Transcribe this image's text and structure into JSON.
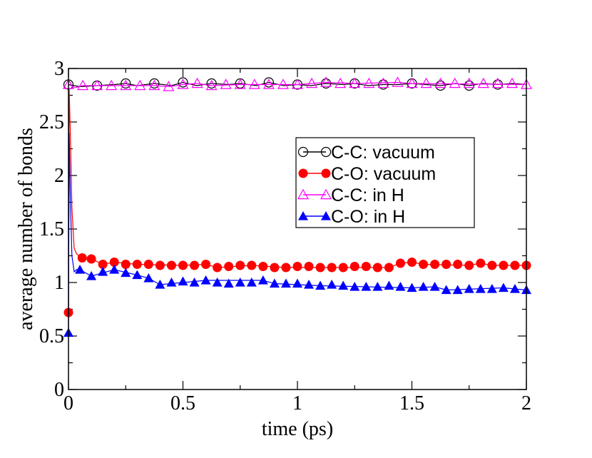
{
  "chart_data": {
    "type": "line",
    "xlabel": "time (ps)",
    "ylabel": "average number of bonds",
    "xlim": [
      0,
      2
    ],
    "ylim": [
      0,
      3
    ],
    "x_ticks": [
      0,
      0.5,
      1,
      1.5,
      2
    ],
    "x_tick_labels": [
      "0",
      "0.5",
      "1",
      "1.5",
      "2"
    ],
    "y_ticks": [
      0,
      0.5,
      1,
      1.5,
      2,
      2.5,
      3
    ],
    "y_tick_labels": [
      "0",
      "0.5",
      "1",
      "1.5",
      "2",
      "2.5",
      "3"
    ],
    "x_minor_step": 0.25,
    "y_minor_step": 0.25,
    "grid": false,
    "legend_position": "center-right",
    "series": [
      {
        "name": "C-C: vacuum",
        "color": "#000000",
        "marker": "open-circle",
        "markers": [
          [
            0,
            2.85
          ],
          [
            0.125,
            2.84
          ],
          [
            0.25,
            2.86
          ],
          [
            0.375,
            2.86
          ],
          [
            0.5,
            2.87
          ],
          [
            0.625,
            2.86
          ],
          [
            0.75,
            2.86
          ],
          [
            0.875,
            2.87
          ],
          [
            1.0,
            2.85
          ],
          [
            1.125,
            2.86
          ],
          [
            1.25,
            2.86
          ],
          [
            1.375,
            2.85
          ],
          [
            1.5,
            2.86
          ],
          [
            1.625,
            2.84
          ],
          [
            1.75,
            2.84
          ],
          [
            1.875,
            2.85
          ]
        ],
        "line": [
          [
            0,
            2.85
          ],
          [
            0.05,
            2.83
          ],
          [
            0.125,
            2.84
          ],
          [
            0.2,
            2.85
          ],
          [
            0.25,
            2.86
          ],
          [
            0.3,
            2.84
          ],
          [
            0.375,
            2.86
          ],
          [
            0.45,
            2.84
          ],
          [
            0.5,
            2.87
          ],
          [
            0.56,
            2.84
          ],
          [
            0.625,
            2.86
          ],
          [
            0.7,
            2.85
          ],
          [
            0.75,
            2.86
          ],
          [
            0.82,
            2.84
          ],
          [
            0.875,
            2.87
          ],
          [
            0.94,
            2.84
          ],
          [
            1.0,
            2.85
          ],
          [
            1.06,
            2.84
          ],
          [
            1.125,
            2.86
          ],
          [
            1.2,
            2.85
          ],
          [
            1.25,
            2.86
          ],
          [
            1.31,
            2.84
          ],
          [
            1.375,
            2.85
          ],
          [
            1.44,
            2.85
          ],
          [
            1.5,
            2.86
          ],
          [
            1.56,
            2.85
          ],
          [
            1.625,
            2.84
          ],
          [
            1.69,
            2.86
          ],
          [
            1.75,
            2.84
          ],
          [
            1.81,
            2.86
          ],
          [
            1.875,
            2.85
          ],
          [
            1.94,
            2.86
          ],
          [
            2.0,
            2.85
          ]
        ]
      },
      {
        "name": "C-O: vacuum",
        "color": "#ff0000",
        "marker": "filled-circle",
        "markers": [
          [
            0,
            0.72
          ],
          [
            0.06,
            1.23
          ],
          [
            0.1,
            1.22
          ],
          [
            0.15,
            1.17
          ],
          [
            0.2,
            1.19
          ],
          [
            0.25,
            1.17
          ],
          [
            0.3,
            1.17
          ],
          [
            0.35,
            1.17
          ],
          [
            0.4,
            1.16
          ],
          [
            0.45,
            1.16
          ],
          [
            0.5,
            1.16
          ],
          [
            0.55,
            1.16
          ],
          [
            0.6,
            1.17
          ],
          [
            0.65,
            1.14
          ],
          [
            0.7,
            1.15
          ],
          [
            0.75,
            1.16
          ],
          [
            0.8,
            1.16
          ],
          [
            0.85,
            1.15
          ],
          [
            0.9,
            1.14
          ],
          [
            0.95,
            1.14
          ],
          [
            1.0,
            1.15
          ],
          [
            1.05,
            1.15
          ],
          [
            1.1,
            1.14
          ],
          [
            1.15,
            1.14
          ],
          [
            1.2,
            1.14
          ],
          [
            1.25,
            1.15
          ],
          [
            1.3,
            1.15
          ],
          [
            1.35,
            1.14
          ],
          [
            1.4,
            1.14
          ],
          [
            1.45,
            1.18
          ],
          [
            1.5,
            1.19
          ],
          [
            1.55,
            1.17
          ],
          [
            1.6,
            1.17
          ],
          [
            1.65,
            1.17
          ],
          [
            1.7,
            1.17
          ],
          [
            1.75,
            1.16
          ],
          [
            1.8,
            1.18
          ],
          [
            1.85,
            1.16
          ],
          [
            1.9,
            1.16
          ],
          [
            1.95,
            1.16
          ],
          [
            2.0,
            1.16
          ]
        ],
        "line": [
          [
            0,
            0.72
          ],
          [
            0.003,
            2.8
          ],
          [
            0.008,
            2.4
          ],
          [
            0.015,
            1.7
          ],
          [
            0.025,
            1.32
          ],
          [
            0.035,
            1.27
          ],
          [
            0.045,
            1.25
          ],
          [
            0.06,
            1.23
          ],
          [
            0.1,
            1.22
          ],
          [
            0.15,
            1.17
          ],
          [
            0.2,
            1.19
          ],
          [
            0.3,
            1.17
          ],
          [
            0.5,
            1.16
          ],
          [
            0.6,
            1.17
          ],
          [
            0.65,
            1.14
          ],
          [
            0.8,
            1.16
          ],
          [
            0.95,
            1.14
          ],
          [
            1.2,
            1.14
          ],
          [
            1.4,
            1.14
          ],
          [
            1.45,
            1.18
          ],
          [
            1.5,
            1.19
          ],
          [
            1.55,
            1.17
          ],
          [
            1.75,
            1.16
          ],
          [
            1.8,
            1.18
          ],
          [
            1.85,
            1.16
          ],
          [
            2.0,
            1.16
          ]
        ]
      },
      {
        "name": "C-C: in H",
        "color": "#ff00ff",
        "marker": "open-triangle",
        "markers": [
          [
            0,
            2.85
          ],
          [
            0.0625,
            2.84
          ],
          [
            0.125,
            2.84
          ],
          [
            0.1875,
            2.84
          ],
          [
            0.25,
            2.84
          ],
          [
            0.3125,
            2.84
          ],
          [
            0.375,
            2.84
          ],
          [
            0.4375,
            2.83
          ],
          [
            0.5,
            2.85
          ],
          [
            0.5625,
            2.86
          ],
          [
            0.625,
            2.84
          ],
          [
            0.6875,
            2.85
          ],
          [
            0.75,
            2.85
          ],
          [
            0.8125,
            2.85
          ],
          [
            0.875,
            2.85
          ],
          [
            0.9375,
            2.85
          ],
          [
            1.0,
            2.85
          ],
          [
            1.0625,
            2.86
          ],
          [
            1.125,
            2.87
          ],
          [
            1.1875,
            2.86
          ],
          [
            1.25,
            2.86
          ],
          [
            1.3125,
            2.86
          ],
          [
            1.375,
            2.86
          ],
          [
            1.4375,
            2.87
          ],
          [
            1.5,
            2.86
          ],
          [
            1.5625,
            2.86
          ],
          [
            1.625,
            2.86
          ],
          [
            1.6875,
            2.86
          ],
          [
            1.75,
            2.86
          ],
          [
            1.8125,
            2.86
          ],
          [
            1.875,
            2.86
          ],
          [
            1.9375,
            2.86
          ],
          [
            2.0,
            2.85
          ]
        ],
        "line": [
          [
            0,
            2.85
          ],
          [
            0.03,
            2.82
          ],
          [
            0.0625,
            2.84
          ],
          [
            0.125,
            2.84
          ],
          [
            0.25,
            2.84
          ],
          [
            0.375,
            2.84
          ],
          [
            0.4375,
            2.83
          ],
          [
            0.5,
            2.85
          ],
          [
            0.5625,
            2.86
          ],
          [
            0.625,
            2.84
          ],
          [
            0.75,
            2.85
          ],
          [
            1.0,
            2.85
          ],
          [
            1.125,
            2.87
          ],
          [
            1.25,
            2.86
          ],
          [
            1.4375,
            2.87
          ],
          [
            1.5,
            2.86
          ],
          [
            2.0,
            2.85
          ]
        ]
      },
      {
        "name": "C-O: in H",
        "color": "#0000ff",
        "marker": "filled-triangle",
        "markers": [
          [
            0,
            0.53
          ],
          [
            0.05,
            1.12
          ],
          [
            0.1,
            1.06
          ],
          [
            0.15,
            1.1
          ],
          [
            0.2,
            1.12
          ],
          [
            0.25,
            1.09
          ],
          [
            0.3,
            1.07
          ],
          [
            0.35,
            1.04
          ],
          [
            0.4,
            0.98
          ],
          [
            0.45,
            1.0
          ],
          [
            0.5,
            1.01
          ],
          [
            0.55,
            1.0
          ],
          [
            0.6,
            1.02
          ],
          [
            0.65,
            1.0
          ],
          [
            0.7,
            0.99
          ],
          [
            0.75,
            1.0
          ],
          [
            0.8,
            1.0
          ],
          [
            0.85,
            1.02
          ],
          [
            0.9,
            0.99
          ],
          [
            0.95,
            0.99
          ],
          [
            1.0,
            0.99
          ],
          [
            1.05,
            0.98
          ],
          [
            1.1,
            0.97
          ],
          [
            1.15,
            0.98
          ],
          [
            1.2,
            0.97
          ],
          [
            1.25,
            0.96
          ],
          [
            1.3,
            0.96
          ],
          [
            1.35,
            0.96
          ],
          [
            1.4,
            0.97
          ],
          [
            1.45,
            0.96
          ],
          [
            1.5,
            0.95
          ],
          [
            1.55,
            0.96
          ],
          [
            1.6,
            0.96
          ],
          [
            1.65,
            0.93
          ],
          [
            1.7,
            0.93
          ],
          [
            1.75,
            0.94
          ],
          [
            1.8,
            0.94
          ],
          [
            1.85,
            0.94
          ],
          [
            1.9,
            0.95
          ],
          [
            1.95,
            0.94
          ],
          [
            2.0,
            0.93
          ]
        ],
        "line": [
          [
            0,
            0.53
          ],
          [
            0.003,
            2.4
          ],
          [
            0.008,
            1.8
          ],
          [
            0.015,
            1.25
          ],
          [
            0.025,
            1.1
          ],
          [
            0.035,
            1.12
          ],
          [
            0.05,
            1.12
          ],
          [
            0.1,
            1.06
          ],
          [
            0.2,
            1.12
          ],
          [
            0.3,
            1.07
          ],
          [
            0.35,
            1.04
          ],
          [
            0.4,
            0.98
          ],
          [
            0.6,
            1.02
          ],
          [
            0.85,
            1.02
          ],
          [
            0.9,
            0.99
          ],
          [
            1.1,
            0.97
          ],
          [
            1.3,
            0.96
          ],
          [
            1.5,
            0.95
          ],
          [
            1.6,
            0.96
          ],
          [
            1.65,
            0.93
          ],
          [
            1.9,
            0.95
          ],
          [
            2.0,
            0.93
          ]
        ]
      }
    ]
  }
}
